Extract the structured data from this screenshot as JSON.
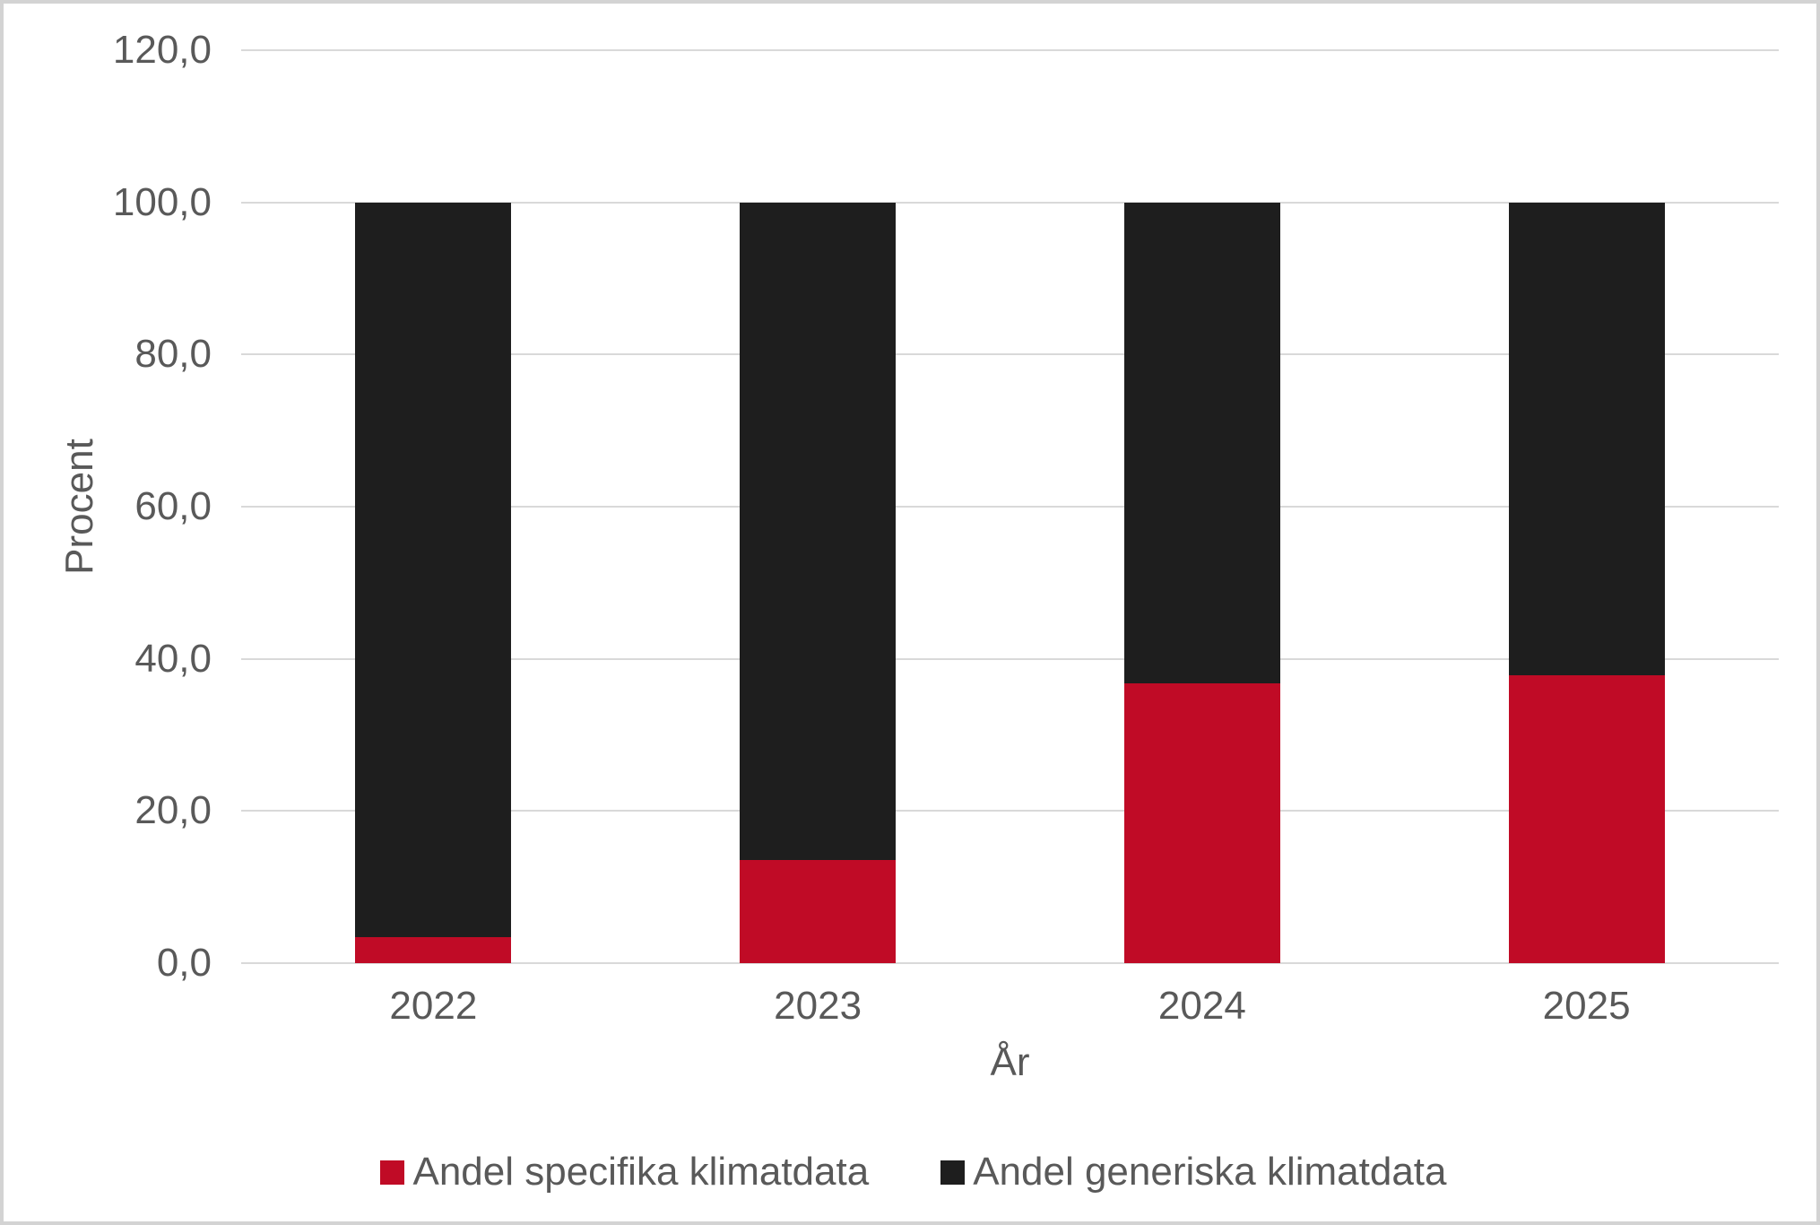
{
  "chart_data": {
    "type": "bar",
    "stacked": true,
    "categories": [
      "2022",
      "2023",
      "2024",
      "2025"
    ],
    "series": [
      {
        "name": "Andel specifika klimatdata",
        "color": "#c00b26",
        "values": [
          3.4,
          13.5,
          36.8,
          37.8
        ]
      },
      {
        "name": "Andel generiska klimatdata",
        "color": "#1e1e1e",
        "values": [
          96.6,
          86.5,
          63.2,
          62.2
        ]
      }
    ],
    "xlabel": "År",
    "ylabel": "Procent",
    "ylim": [
      0,
      120
    ],
    "ytick_step": 20,
    "ytick_labels": [
      "0,0",
      "20,0",
      "40,0",
      "60,0",
      "80,0",
      "100,0",
      "120,0"
    ],
    "grid": true,
    "legend_position": "bottom"
  },
  "colors": {
    "series_specifika": "#c00b26",
    "series_generiska": "#1e1e1e",
    "axis_text": "#595959",
    "gridline": "#d9d9d9",
    "frame_border": "#d3d3d3",
    "background": "#ffffff"
  }
}
